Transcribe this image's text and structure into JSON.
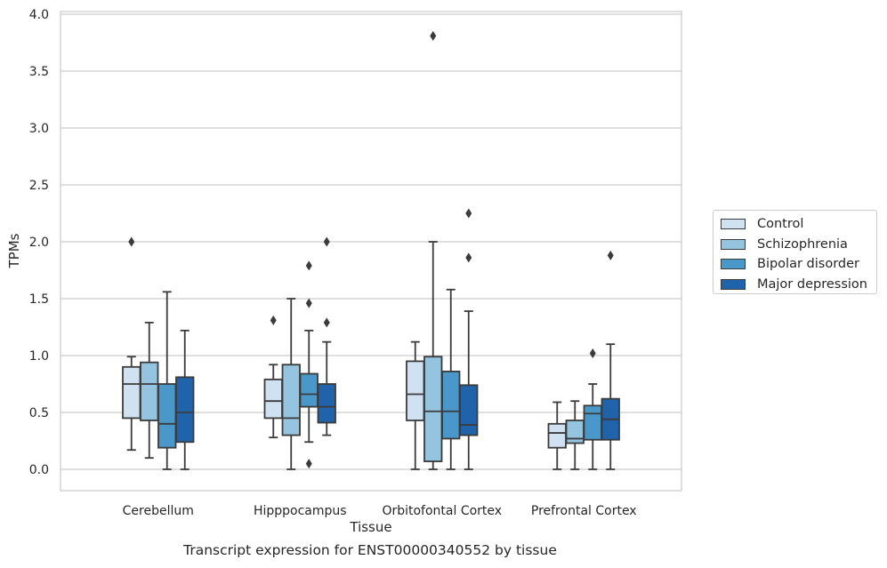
{
  "chart_data": {
    "type": "box",
    "title": "",
    "caption": "Transcript expression for ENST00000340552 by tissue",
    "xlabel": "Tissue",
    "ylabel": "TPMs",
    "ylim": [
      -0.18,
      4.02
    ],
    "yticks": [
      "0.0",
      "0.5",
      "1.0",
      "1.5",
      "2.0",
      "2.5",
      "3.0",
      "3.5",
      "4.0"
    ],
    "ytick_values": [
      0,
      0.5,
      1.0,
      1.5,
      2.0,
      2.5,
      3.0,
      3.5,
      4.0
    ],
    "grid": "horizontal",
    "legend_position": "right",
    "categories": [
      "Cerebellum",
      "Hipppocampus",
      "Orbitofontal Cortex",
      "Prefrontal Cortex"
    ],
    "series": [
      {
        "name": "Control",
        "color": "#d0e1f2",
        "boxes": [
          {
            "whislo": 0.17,
            "q1": 0.45,
            "med": 0.75,
            "q3": 0.9,
            "whishi": 0.99,
            "fliers": [
              2.0
            ]
          },
          {
            "whislo": 0.28,
            "q1": 0.45,
            "med": 0.6,
            "q3": 0.79,
            "whishi": 0.92,
            "fliers": [
              1.31
            ]
          },
          {
            "whislo": 0.0,
            "q1": 0.43,
            "med": 0.66,
            "q3": 0.95,
            "whishi": 1.12,
            "fliers": []
          },
          {
            "whislo": 0.0,
            "q1": 0.19,
            "med": 0.32,
            "q3": 0.4,
            "whishi": 0.59,
            "fliers": []
          }
        ]
      },
      {
        "name": "Schizophrenia",
        "color": "#94c4df",
        "boxes": [
          {
            "whislo": 0.1,
            "q1": 0.43,
            "med": 0.75,
            "q3": 0.94,
            "whishi": 1.29,
            "fliers": []
          },
          {
            "whislo": 0.0,
            "q1": 0.3,
            "med": 0.45,
            "q3": 0.92,
            "whishi": 1.5,
            "fliers": []
          },
          {
            "whislo": 0.0,
            "q1": 0.07,
            "med": 0.51,
            "q3": 0.99,
            "whishi": 2.0,
            "fliers": [
              3.81
            ]
          },
          {
            "whislo": 0.0,
            "q1": 0.23,
            "med": 0.27,
            "q3": 0.43,
            "whishi": 0.6,
            "fliers": []
          }
        ]
      },
      {
        "name": "Bipolar disorder",
        "color": "#4a98c9",
        "boxes": [
          {
            "whislo": 0.0,
            "q1": 0.19,
            "med": 0.4,
            "q3": 0.75,
            "whishi": 1.56,
            "fliers": []
          },
          {
            "whislo": 0.24,
            "q1": 0.55,
            "med": 0.66,
            "q3": 0.84,
            "whishi": 1.22,
            "fliers": [
              1.46,
              1.79,
              0.05
            ]
          },
          {
            "whislo": 0.0,
            "q1": 0.27,
            "med": 0.51,
            "q3": 0.86,
            "whishi": 1.58,
            "fliers": []
          },
          {
            "whislo": 0.0,
            "q1": 0.26,
            "med": 0.49,
            "q3": 0.56,
            "whishi": 0.75,
            "fliers": [
              1.02
            ]
          }
        ]
      },
      {
        "name": "Major depression",
        "color": "#2163aa",
        "boxes": [
          {
            "whislo": 0.0,
            "q1": 0.24,
            "med": 0.5,
            "q3": 0.81,
            "whishi": 1.22,
            "fliers": []
          },
          {
            "whislo": 0.3,
            "q1": 0.41,
            "med": 0.55,
            "q3": 0.75,
            "whishi": 1.12,
            "fliers": [
              1.29,
              2.0
            ]
          },
          {
            "whislo": 0.0,
            "q1": 0.3,
            "med": 0.39,
            "q3": 0.74,
            "whishi": 1.39,
            "fliers": [
              1.86,
              2.25
            ]
          },
          {
            "whislo": 0.0,
            "q1": 0.26,
            "med": 0.44,
            "q3": 0.62,
            "whishi": 1.1,
            "fliers": [
              1.88
            ]
          }
        ]
      }
    ]
  }
}
